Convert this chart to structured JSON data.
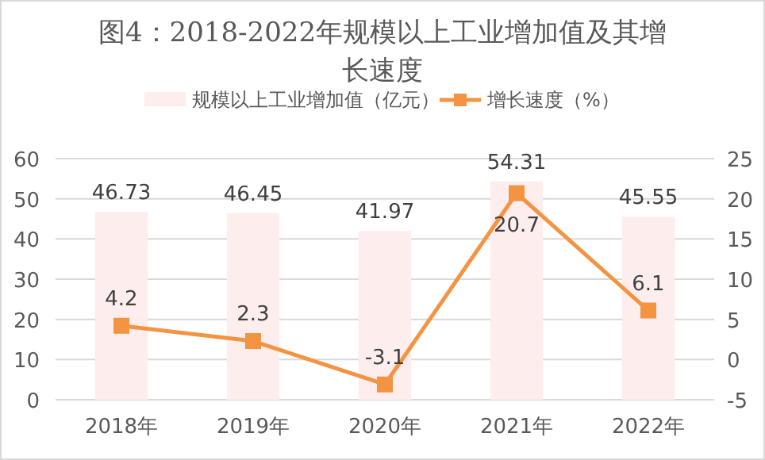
{
  "chart_data": {
    "type": "bar",
    "title": "图4：2018-2022年规模以上工业增加值及其增长速度",
    "categories": [
      "2018年",
      "2019年",
      "2020年",
      "2021年",
      "2022年"
    ],
    "series": [
      {
        "name": "规模以上工业增加值（亿元）",
        "color": "#feeded",
        "values": [
          46.73,
          46.45,
          41.97,
          54.31,
          45.55
        ]
      },
      {
        "name": "增长速度（%）",
        "type": "line",
        "axis": "y2",
        "color": "#f39443",
        "values": [
          4.2,
          2.3,
          -3.1,
          20.7,
          6.1
        ]
      }
    ],
    "ylim": [
      0,
      60
    ],
    "yticks": [
      0,
      10,
      20,
      30,
      40,
      50,
      60
    ],
    "y2lim": [
      -5,
      25
    ],
    "y2ticks": [
      -5,
      0,
      5,
      10,
      15,
      20,
      25
    ],
    "grid": "y",
    "legend": "top",
    "marker": "square",
    "data_labels": true
  }
}
